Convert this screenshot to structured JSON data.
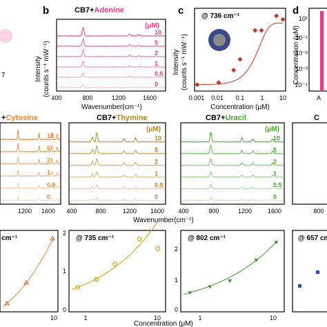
{
  "panels": {
    "a_partial": {
      "text": "7"
    },
    "b": {
      "letter": "b",
      "title_prefix": "CB7+",
      "title_analyte": "Adenine",
      "analyte_color": "#e0408a",
      "unit": "(μM)",
      "conc_labels": [
        "10",
        "5",
        "2",
        "1",
        "0.5",
        "0"
      ],
      "ylabel": "Intensity",
      "ylabel2": "(counts s⁻¹ mW⁻¹)",
      "xlabel": "Wavenumber(cm⁻¹)",
      "xticks": [
        "400",
        "800",
        "1200",
        "1600"
      ]
    },
    "c": {
      "letter": "c",
      "annotation": "@ 736 cm⁻¹",
      "ylabel": "Intensity",
      "ylabel2": "(counts s⁻¹ mW⁻¹)",
      "xlabel": "Concentration (μM)",
      "xticks": [
        "0.001",
        "0.01",
        "0.1",
        "1",
        "10"
      ]
    },
    "d": {
      "letter": "d",
      "ylabel": "Concentration (μM)",
      "yticks": [
        "10¹",
        "10⁻¹",
        "10⁻²",
        "10⁻³",
        "10⁻⁴"
      ],
      "xtick": "A"
    },
    "cytosine": {
      "title_prefix": "+",
      "title_analyte": "Cytosine",
      "color": "#e8893a",
      "conc_labels": [
        "10",
        "5",
        "2",
        "1",
        "0.5",
        "0"
      ],
      "xticks": [
        "1200",
        "1600"
      ]
    },
    "thymine": {
      "title_prefix": "CB7+",
      "title_analyte": "Thymine",
      "color": "#b8862a",
      "unit": "(μM)",
      "conc_labels": [
        "10",
        "5",
        "2",
        "1",
        "0.5",
        "0"
      ],
      "xticks": [
        "400",
        "800",
        "1200",
        "1600"
      ]
    },
    "uracil": {
      "title_prefix": "CB7+",
      "title_analyte": "Uracil",
      "color": "#4aa832",
      "unit": "(μM)",
      "conc_labels": [
        "10",
        "5",
        "2",
        "1",
        "0.5",
        "0"
      ],
      "xticks": [
        "400",
        "800",
        "1200",
        "1600"
      ]
    },
    "guanine_partial": {
      "title": "C",
      "color": "#4a6fc8",
      "xticks": [
        "800"
      ]
    },
    "shared_xlabel": "Wavenumber(cm⁻¹)",
    "bottom": {
      "left_partial": {
        "annotation": "cm⁻¹",
        "xtick": "10"
      },
      "thymine": {
        "annotation": "@ 735 cm⁻¹",
        "yticks": [
          "0",
          "1",
          "2"
        ],
        "xticks": [
          "1",
          "10"
        ]
      },
      "uracil": {
        "annotation": "@ 802 cm⁻¹",
        "yticks": [
          "0",
          "1",
          "2"
        ],
        "xticks": [
          "1",
          "10"
        ]
      },
      "guanine_partial": {
        "annotation": "@ 657 cm"
      },
      "xlabel": "Concentration (μM)"
    }
  },
  "chart_data": [
    {
      "type": "line",
      "title": "CB7+Adenine",
      "xlabel": "Wavenumber(cm⁻¹)",
      "ylabel": "Intensity (counts s⁻¹ mW⁻¹)",
      "xlim": [
        400,
        1800
      ],
      "series": [
        {
          "name": "10",
          "peaks": [
            [
              736,
              1.0
            ],
            [
              1340,
              0.25
            ],
            [
              1460,
              0.15
            ]
          ]
        },
        {
          "name": "5",
          "peaks": [
            [
              736,
              0.85
            ],
            [
              1340,
              0.22
            ]
          ]
        },
        {
          "name": "2",
          "peaks": [
            [
              736,
              0.7
            ],
            [
              1340,
              0.2
            ]
          ]
        },
        {
          "name": "1",
          "peaks": [
            [
              736,
              0.55
            ],
            [
              1340,
              0.18
            ]
          ]
        },
        {
          "name": "0.5",
          "peaks": [
            [
              736,
              0.4
            ],
            [
              1340,
              0.15
            ]
          ]
        },
        {
          "name": "0",
          "peaks": [
            [
              736,
              0.1
            ]
          ]
        }
      ]
    },
    {
      "type": "scatter",
      "annotation": "@ 736 cm⁻¹",
      "xlabel": "Concentration (μM)",
      "x_scale": "log",
      "xlim": [
        0.001,
        10
      ],
      "x": [
        0.001,
        0.01,
        0.05,
        0.1,
        0.5,
        1,
        5,
        10
      ],
      "y": [
        0.05,
        0.08,
        0.25,
        0.4,
        0.8,
        0.8,
        1.0,
        0.95
      ],
      "fit": "exponential",
      "color": "#c03a2b"
    },
    {
      "type": "scatter",
      "annotation": "@ 735 cm⁻¹",
      "xlabel": "Concentration (μM)",
      "x_scale": "log",
      "ylim": [
        0,
        2
      ],
      "x": [
        0.5,
        1,
        2,
        5,
        10
      ],
      "y": [
        0.6,
        0.8,
        1.2,
        1.85,
        1.6
      ],
      "color": "#d4a017"
    },
    {
      "type": "scatter",
      "annotation": "@ 802 cm⁻¹",
      "xlabel": "Concentration (μM)",
      "x_scale": "log",
      "ylim": [
        0,
        2.5
      ],
      "x": [
        0.5,
        1,
        2,
        5,
        10
      ],
      "y": [
        0.6,
        0.8,
        1.0,
        1.7,
        2.3
      ],
      "color": "#3a9a2a"
    }
  ]
}
